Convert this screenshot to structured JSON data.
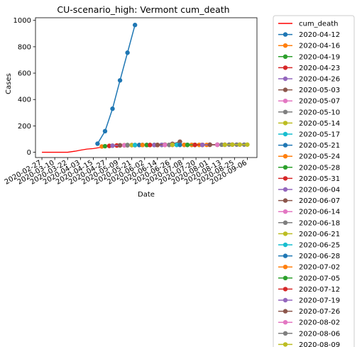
{
  "chart_data": {
    "type": "line",
    "title": "CU-scenario_high: Vermont cum_death",
    "xlabel": "Date",
    "ylabel": "Cases",
    "ylim": [
      -40,
      1020
    ],
    "xlim": [
      "2020-02-21",
      "2020-09-15"
    ],
    "grid": false,
    "legend_position": "outside-right",
    "y_ticks": [
      0,
      200,
      400,
      600,
      800,
      1000
    ],
    "x_ticks": [
      "2020-02-27",
      "2020-03-10",
      "2020-03-22",
      "2020-04-03",
      "2020-04-15",
      "2020-04-27",
      "2020-05-09",
      "2020-05-21",
      "2020-06-02",
      "2020-06-14",
      "2020-06-26",
      "2020-07-08",
      "2020-07-20",
      "2020-08-01",
      "2020-08-13",
      "2020-08-25",
      "2020-09-06"
    ],
    "series": [
      {
        "name": "cum_death",
        "color": "#ff0000",
        "marker": false,
        "x": [
          "2020-02-27",
          "2020-03-10",
          "2020-03-22",
          "2020-03-29",
          "2020-04-03",
          "2020-04-09",
          "2020-04-15",
          "2020-04-21",
          "2020-04-27",
          "2020-05-03",
          "2020-05-09",
          "2020-05-15",
          "2020-05-21",
          "2020-05-27",
          "2020-06-02",
          "2020-06-14",
          "2020-06-26",
          "2020-07-08",
          "2020-07-20",
          "2020-08-01",
          "2020-08-13",
          "2020-08-25",
          "2020-09-06"
        ],
        "y": [
          0,
          0,
          0,
          8,
          16,
          24,
          28,
          36,
          44,
          50,
          52,
          53,
          54,
          55,
          55,
          55,
          56,
          56,
          56,
          57,
          57,
          58,
          58
        ]
      },
      {
        "name": "2020-04-12",
        "color": "#1f77b4",
        "x": [
          "2020-04-19",
          "2020-04-26",
          "2020-05-03",
          "2020-05-10",
          "2020-05-17",
          "2020-05-24"
        ],
        "y": [
          65,
          160,
          330,
          545,
          755,
          965
        ]
      },
      {
        "name": "2020-04-16",
        "color": "#ff7f0e",
        "x": [
          "2020-04-23",
          "2020-04-30",
          "2020-05-07",
          "2020-05-14"
        ],
        "y": [
          44,
          49,
          52,
          54
        ]
      },
      {
        "name": "2020-04-19",
        "color": "#2ca02c",
        "x": [
          "2020-04-26",
          "2020-05-03",
          "2020-05-10",
          "2020-05-17"
        ],
        "y": [
          46,
          50,
          53,
          55
        ]
      },
      {
        "name": "2020-04-23",
        "color": "#d62728",
        "x": [
          "2020-04-30",
          "2020-05-07",
          "2020-05-14",
          "2020-05-21"
        ],
        "y": [
          48,
          51,
          53,
          55
        ]
      },
      {
        "name": "2020-04-26",
        "color": "#9467bd",
        "x": [
          "2020-05-03",
          "2020-05-10",
          "2020-05-17",
          "2020-05-24"
        ],
        "y": [
          50,
          52,
          54,
          55
        ]
      },
      {
        "name": "2020-05-03",
        "color": "#8c564b",
        "x": [
          "2020-05-10",
          "2020-05-17",
          "2020-05-24",
          "2020-05-31"
        ],
        "y": [
          52,
          53,
          54,
          55
        ]
      },
      {
        "name": "2020-05-07",
        "color": "#e377c2",
        "x": [
          "2020-05-14",
          "2020-05-21",
          "2020-05-28",
          "2020-06-04"
        ],
        "y": [
          53,
          54,
          55,
          55
        ]
      },
      {
        "name": "2020-05-10",
        "color": "#7f7f7f",
        "x": [
          "2020-05-17",
          "2020-05-24",
          "2020-05-31",
          "2020-06-07"
        ],
        "y": [
          54,
          54,
          55,
          55
        ]
      },
      {
        "name": "2020-05-14",
        "color": "#bcbd22",
        "x": [
          "2020-05-21",
          "2020-05-28",
          "2020-06-04",
          "2020-06-11"
        ],
        "y": [
          54,
          55,
          55,
          55
        ]
      },
      {
        "name": "2020-05-17",
        "color": "#17becf",
        "x": [
          "2020-05-24",
          "2020-05-31",
          "2020-06-07",
          "2020-06-14"
        ],
        "y": [
          55,
          55,
          55,
          55
        ]
      },
      {
        "name": "2020-05-21",
        "color": "#1f77b4",
        "x": [
          "2020-05-28",
          "2020-06-04",
          "2020-06-11",
          "2020-06-18"
        ],
        "y": [
          55,
          55,
          55,
          56
        ]
      },
      {
        "name": "2020-05-24",
        "color": "#ff7f0e",
        "x": [
          "2020-05-31",
          "2020-06-07",
          "2020-06-14",
          "2020-06-21"
        ],
        "y": [
          55,
          55,
          55,
          56
        ]
      },
      {
        "name": "2020-05-28",
        "color": "#2ca02c",
        "x": [
          "2020-06-04",
          "2020-06-11",
          "2020-06-18",
          "2020-06-25"
        ],
        "y": [
          55,
          55,
          56,
          56
        ]
      },
      {
        "name": "2020-05-31",
        "color": "#d62728",
        "x": [
          "2020-06-07",
          "2020-06-14",
          "2020-06-21",
          "2020-06-28"
        ],
        "y": [
          55,
          55,
          56,
          56
        ]
      },
      {
        "name": "2020-06-04",
        "color": "#9467bd",
        "x": [
          "2020-06-11",
          "2020-06-18",
          "2020-06-25",
          "2020-07-02"
        ],
        "y": [
          55,
          56,
          56,
          56
        ]
      },
      {
        "name": "2020-06-07",
        "color": "#8c564b",
        "x": [
          "2020-06-14",
          "2020-06-21",
          "2020-06-28",
          "2020-07-05"
        ],
        "y": [
          56,
          58,
          64,
          80
        ]
      },
      {
        "name": "2020-06-14",
        "color": "#e377c2",
        "x": [
          "2020-06-21",
          "2020-06-28",
          "2020-07-05",
          "2020-07-12"
        ],
        "y": [
          56,
          56,
          56,
          56
        ]
      },
      {
        "name": "2020-06-18",
        "color": "#7f7f7f",
        "x": [
          "2020-06-25",
          "2020-07-02",
          "2020-07-09",
          "2020-07-16"
        ],
        "y": [
          56,
          56,
          56,
          56
        ]
      },
      {
        "name": "2020-06-21",
        "color": "#bcbd22",
        "x": [
          "2020-06-28",
          "2020-07-05",
          "2020-07-12",
          "2020-07-19"
        ],
        "y": [
          56,
          56,
          56,
          56
        ]
      },
      {
        "name": "2020-06-25",
        "color": "#17becf",
        "x": [
          "2020-07-02",
          "2020-07-09",
          "2020-07-16",
          "2020-07-23"
        ],
        "y": [
          56,
          56,
          56,
          56
        ]
      },
      {
        "name": "2020-06-28",
        "color": "#1f77b4",
        "x": [
          "2020-07-05",
          "2020-07-12",
          "2020-07-19",
          "2020-07-26"
        ],
        "y": [
          56,
          56,
          56,
          56
        ]
      },
      {
        "name": "2020-07-02",
        "color": "#ff7f0e",
        "x": [
          "2020-07-09",
          "2020-07-16",
          "2020-07-23",
          "2020-07-30"
        ],
        "y": [
          56,
          56,
          56,
          56
        ]
      },
      {
        "name": "2020-07-05",
        "color": "#2ca02c",
        "x": [
          "2020-07-12",
          "2020-07-19",
          "2020-07-26",
          "2020-08-02"
        ],
        "y": [
          56,
          56,
          56,
          57
        ]
      },
      {
        "name": "2020-07-12",
        "color": "#d62728",
        "x": [
          "2020-07-19",
          "2020-07-26",
          "2020-08-02",
          "2020-08-09"
        ],
        "y": [
          56,
          56,
          57,
          57
        ]
      },
      {
        "name": "2020-07-19",
        "color": "#9467bd",
        "x": [
          "2020-07-26",
          "2020-08-02",
          "2020-08-09",
          "2020-08-16"
        ],
        "y": [
          56,
          57,
          57,
          57
        ]
      },
      {
        "name": "2020-07-26",
        "color": "#8c564b",
        "x": [
          "2020-08-02",
          "2020-08-09",
          "2020-08-16",
          "2020-08-23"
        ],
        "y": [
          57,
          57,
          57,
          58
        ]
      },
      {
        "name": "2020-08-02",
        "color": "#e377c2",
        "x": [
          "2020-08-09",
          "2020-08-16",
          "2020-08-23",
          "2020-08-30"
        ],
        "y": [
          57,
          57,
          58,
          58
        ]
      },
      {
        "name": "2020-08-06",
        "color": "#7f7f7f",
        "x": [
          "2020-08-13",
          "2020-08-20",
          "2020-08-27",
          "2020-09-03"
        ],
        "y": [
          57,
          58,
          58,
          58
        ]
      },
      {
        "name": "2020-08-09",
        "color": "#bcbd22",
        "x": [
          "2020-08-16",
          "2020-08-23",
          "2020-08-30",
          "2020-09-06"
        ],
        "y": [
          57,
          58,
          58,
          58
        ]
      }
    ]
  }
}
